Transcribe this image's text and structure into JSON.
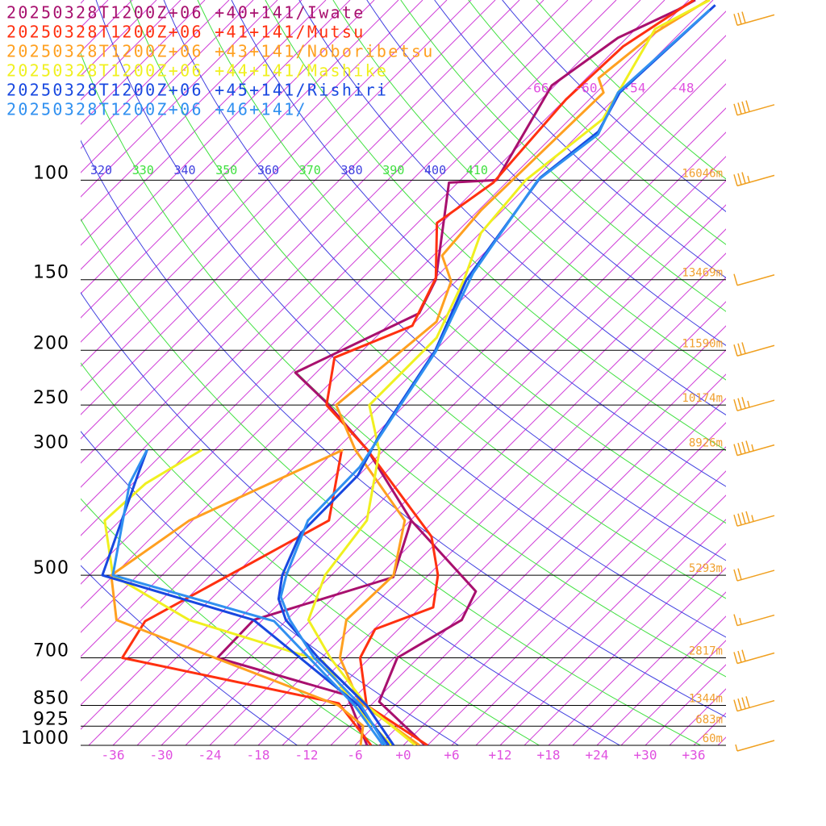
{
  "chart_data": {
    "type": "skewt",
    "legend": "top-left",
    "ylim": [
      1000,
      48
    ],
    "yticks": [
      100,
      150,
      200,
      250,
      300,
      500,
      700,
      850,
      925,
      1000
    ],
    "heights": [
      "16046m",
      "13469m",
      "11590m",
      "10174m",
      "8926m",
      "5293m",
      "2817m",
      "1344m",
      "683m",
      "60m"
    ],
    "xlim": [
      -40,
      40
    ],
    "xticks": [
      -36,
      -30,
      -24,
      -18,
      -12,
      -6,
      {
        "value": 0,
        "label": "+0"
      },
      {
        "value": 6,
        "label": "+6"
      },
      {
        "value": 12,
        "label": "+12"
      },
      {
        "value": 18,
        "label": "+18"
      },
      {
        "value": 24,
        "label": "+24"
      },
      {
        "value": 30,
        "label": "+30"
      },
      {
        "value": 36,
        "label": "+36"
      }
    ],
    "isotherm_step": 3,
    "isotherm_color": "#d040d8",
    "isotherm_labels": [
      -66,
      -60,
      -54,
      -48
    ],
    "isentropes": [
      260,
      270,
      280,
      290,
      300,
      310,
      320,
      330,
      340,
      350,
      360,
      370,
      380,
      390,
      400,
      410,
      420,
      430,
      440,
      450,
      460,
      470
    ],
    "isentrope_colors": [
      "#4040e0",
      "#40e040"
    ],
    "wind_color": "#f0a020",
    "winds": {
      "pressure": [
        52,
        75,
        100,
        150,
        200,
        250,
        300,
        400,
        500,
        600,
        700,
        850,
        1000
      ],
      "speed": [
        30,
        40,
        35,
        10,
        30,
        35,
        45,
        45,
        20,
        15,
        30,
        40,
        5
      ]
    },
    "series": [
      {
        "name": "20250328T1200Z+06 +40+141/Iwate",
        "color": "#a8106e",
        "pressure": [
          1000,
          837,
          700,
          600,
          534,
          400,
          300,
          248,
          219,
          172,
          150,
          101,
          100,
          68,
          56,
          50,
          48
        ],
        "temperature": [
          2.7,
          -8.4,
          -11.6,
          -8.3,
          -10.1,
          -26.9,
          -41.1,
          -51.9,
          -59.6,
          -51.6,
          -53.7,
          -64.1,
          -58.5,
          -63.4,
          -61.1,
          -57.2,
          -56.2
        ],
        "dewpoint_pressure": [
          1000,
          815,
          700,
          600,
          504,
          400
        ],
        "dewpoint": [
          -4.5,
          -13.2,
          -33.9,
          -34.1,
          -22.1,
          -26.9
        ]
      },
      {
        "name": "20250328T1200Z+06 +41+141/Mutsu",
        "color": "#ff3010",
        "pressure": [
          1000,
          850,
          700,
          623,
          570,
          500,
          427,
          300,
          250,
          206,
          181,
          149,
          119,
          101,
          72,
          58,
          48
        ],
        "temperature": [
          3.0,
          -9.5,
          -16.2,
          -17.9,
          -13.4,
          -16.8,
          -22.4,
          -41.1,
          -51.7,
          -56.6,
          -50.9,
          -53.9,
          -60.6,
          -58.6,
          -59.9,
          -59.4,
          -56.4
        ],
        "dewpoint_pressure": [
          1000,
          843,
          700,
          603,
          400,
          302
        ],
        "dewpoint": [
          -4.0,
          -13.2,
          -45.7,
          -47.4,
          -37.1,
          -44.1
        ]
      },
      {
        "name": "20250328T1200Z+06 +43+141/Noboribetsu",
        "color": "#ffa020",
        "pressure": [
          1000,
          837,
          700,
          600,
          500,
          400,
          300,
          250,
          178,
          151,
          136,
          113,
          70,
          66,
          55,
          48
        ],
        "temperature": [
          2.0,
          -10.9,
          -18.7,
          -22.6,
          -22.3,
          -27.7,
          -42.6,
          -50.5,
          -48.4,
          -51.6,
          -55.9,
          -56.7,
          -56.1,
          -58.5,
          -57.2,
          -54.6
        ],
        "dewpoint_pressure": [
          1000,
          924,
          850,
          600,
          500,
          400,
          300
        ],
        "dewpoint": [
          -5.3,
          -7.4,
          -13.0,
          -51.1,
          -57.3,
          -54.4,
          -44.1
        ]
      },
      {
        "name": "20250328T1200Z+06 +44+141/Mashike",
        "color": "#f0f020",
        "pressure": [
          1000,
          850,
          700,
          600,
          500,
          400,
          302,
          250,
          190,
          150,
          124,
          100,
          78,
          54,
          48
        ],
        "temperature": [
          1.5,
          -9.5,
          -19.9,
          -27.3,
          -30.8,
          -32.4,
          -39.4,
          -46.4,
          -46.4,
          -50.2,
          -53.9,
          -54.9,
          -52.9,
          -57.6,
          -54.4
        ],
        "dewpoint_pressure": [
          1000,
          850,
          710,
          600,
          500,
          400,
          344,
          300
        ],
        "dewpoint": [
          -1.5,
          -11.0,
          -20.4,
          -42.1,
          -57.1,
          -64.9,
          -64.4,
          -61.6
        ]
      },
      {
        "name": "20250328T1200Z+06 +45+141/Rishiri",
        "color": "#1848e0",
        "pressure": [
          1000,
          850,
          700,
          600,
          551,
          500,
          422,
          333,
          283,
          200,
          150,
          99,
          82,
          70,
          49
        ],
        "temperature": [
          -1.2,
          -9.5,
          -21.4,
          -30.1,
          -33.6,
          -36.1,
          -39.0,
          -39.1,
          -41.4,
          -45.0,
          -49.9,
          -53.4,
          -51.9,
          -54.1,
          -53.1
        ],
        "dewpoint_pressure": [
          1000,
          850,
          600,
          500,
          333,
          300
        ],
        "dewpoint": [
          -1.8,
          -10.5,
          -34.1,
          -58.4,
          -66.4,
          -68.4
        ]
      },
      {
        "name": "20250328T1200Z+06 +46+141/",
        "color": "#3090f0",
        "pressure": [
          1000,
          850,
          700,
          600,
          546,
          500,
          400,
          322,
          201,
          146,
          100,
          83,
          70,
          50
        ],
        "temperature": [
          -2.2,
          -10.2,
          -21.9,
          -29.6,
          -33.6,
          -35.6,
          -39.7,
          -39.9,
          -44.8,
          -49.9,
          -53.4,
          -51.6,
          -54.3,
          -53.2
        ],
        "dewpoint_pressure": [
          1000,
          850,
          603,
          500,
          344,
          300
        ],
        "dewpoint": [
          -2.5,
          -11.0,
          -31.4,
          -57.1,
          -66.4,
          -68.4
        ]
      }
    ]
  }
}
